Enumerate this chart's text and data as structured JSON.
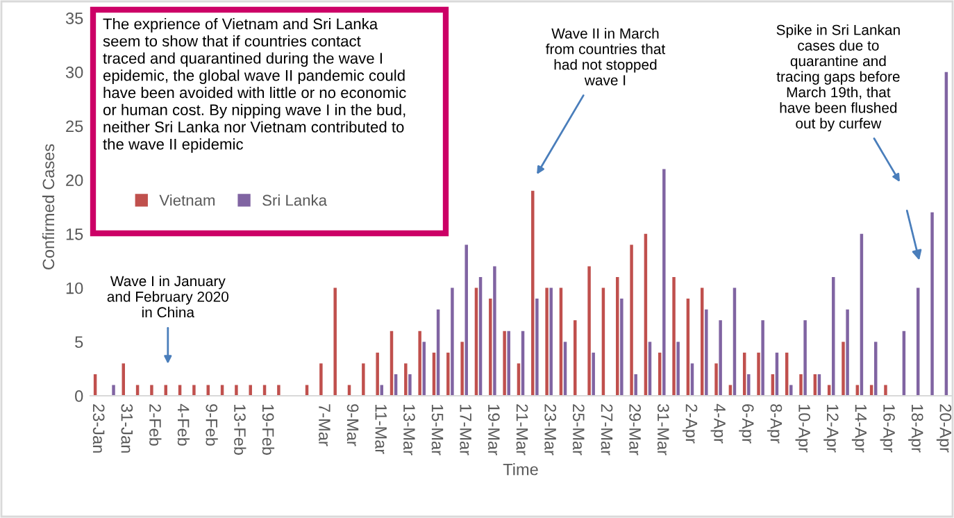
{
  "chart_data": {
    "type": "bar",
    "xlabel": "Time",
    "ylabel": "Confirmed Cases",
    "categories": [
      "23-Jan",
      null,
      "31-Jan",
      null,
      "2-Feb",
      null,
      "4-Feb",
      null,
      "9-Feb",
      null,
      "13-Feb",
      null,
      "19-Feb",
      null,
      null,
      null,
      "7-Mar",
      null,
      "9-Mar",
      null,
      "11-Mar",
      null,
      "13-Mar",
      null,
      "15-Mar",
      null,
      "17-Mar",
      null,
      "19-Mar",
      null,
      "21-Mar",
      null,
      "23-Mar",
      null,
      "25-Mar",
      null,
      "27-Mar",
      null,
      "29-Mar",
      null,
      "31-Mar",
      null,
      "2-Apr",
      null,
      "4-Apr",
      null,
      "6-Apr",
      null,
      "8-Apr",
      null,
      "10-Apr",
      null,
      "12-Apr",
      null,
      "14-Apr",
      null,
      "16-Apr",
      null,
      "18-Apr",
      null,
      "20-Apr"
    ],
    "series": [
      {
        "name": "Vietnam",
        "color": "#c0504d",
        "values": [
          2,
          0,
          3,
          1,
          1,
          1,
          1,
          1,
          1,
          1,
          1,
          1,
          1,
          1,
          null,
          1,
          3,
          10,
          1,
          3,
          4,
          6,
          3,
          6,
          4,
          4,
          5,
          10,
          9,
          6,
          3,
          19,
          10,
          10,
          7,
          12,
          10,
          11,
          14,
          15,
          4,
          11,
          9,
          10,
          3,
          1,
          4,
          4,
          2,
          4,
          2,
          2,
          1,
          5,
          1,
          1,
          1,
          0,
          0,
          0,
          0
        ]
      },
      {
        "name": "Sri Lanka",
        "color": "#8064a2",
        "values": [
          0,
          1,
          0,
          0,
          0,
          0,
          0,
          0,
          0,
          0,
          0,
          0,
          0,
          0,
          null,
          0,
          0,
          0,
          0,
          0,
          1,
          2,
          2,
          5,
          8,
          10,
          14,
          11,
          12,
          6,
          6,
          9,
          10,
          5,
          0,
          4,
          0,
          9,
          2,
          5,
          21,
          5,
          3,
          8,
          7,
          10,
          2,
          7,
          4,
          1,
          7,
          2,
          11,
          8,
          15,
          5,
          0,
          6,
          10,
          17,
          30
        ]
      }
    ],
    "ylim": [
      0,
      35
    ],
    "yticks": [
      0,
      5,
      10,
      15,
      20,
      25,
      30,
      35
    ],
    "grid": false,
    "legend": "left",
    "annotations": [
      "The exprience of Vietnam and Sri Lanka\nseem to show that if countries contact\ntraced and quarantined during the wave I\nepidemic, the global wave II pandemic could\nhave been avoided with little or no economic\nor human cost. By nipping wave I in the bud,\nneither Sri Lanka nor Vietnam contributed to\nthe wave II epidemic",
      "Wave I in January\nand February 2020\nin China",
      "Wave II in March\nfrom countries that\nhad not stopped\nwave I",
      "Spike in Sri Lankan\ncases due to\nquarantine and\ntracing gaps before\nMarch 19th, that\nhave been flushed\nout by curfew"
    ]
  }
}
